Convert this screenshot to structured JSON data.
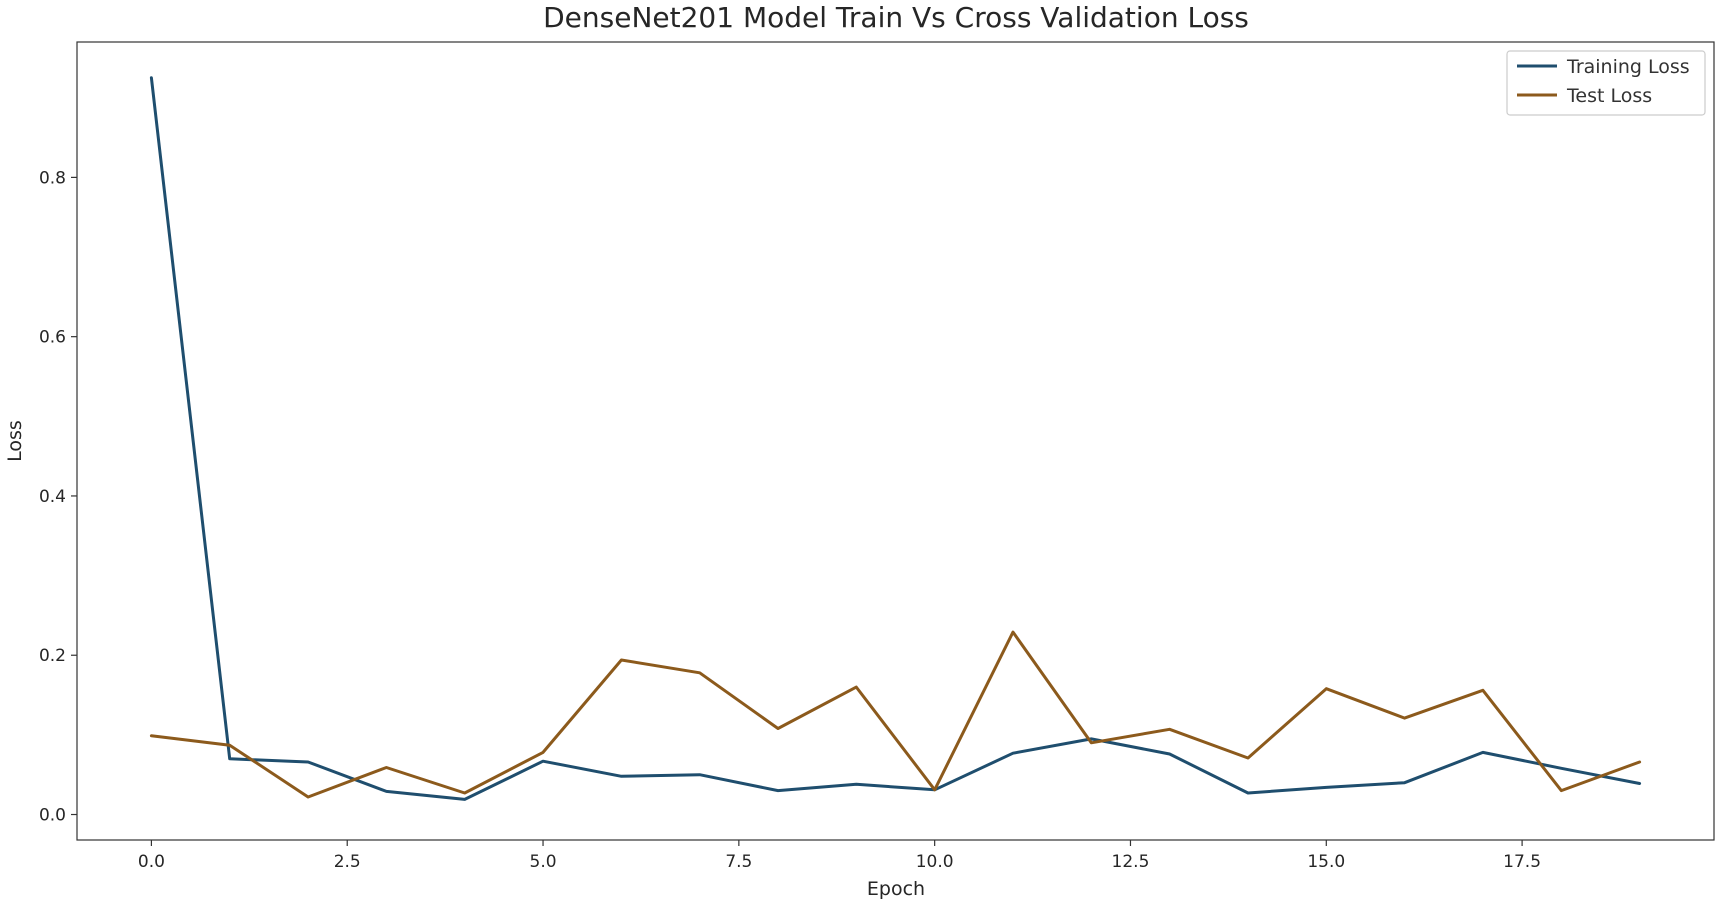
{
  "chart_data": {
    "type": "line",
    "title": "DenseNet201 Model Train Vs Cross Validation Loss",
    "xlabel": "Epoch",
    "ylabel": "Loss",
    "xlim": [
      -0.95,
      19.95
    ],
    "ylim": [
      -0.032,
      0.97
    ],
    "x_ticks": [
      "0.0",
      "2.5",
      "5.0",
      "7.5",
      "10.0",
      "12.5",
      "15.0",
      "17.5"
    ],
    "y_ticks": [
      "0.0",
      "0.2",
      "0.4",
      "0.6",
      "0.8"
    ],
    "grid": false,
    "legend_position": "top-right",
    "x": [
      0,
      1,
      2,
      3,
      4,
      5,
      6,
      7,
      8,
      9,
      10,
      11,
      12,
      13,
      14,
      15,
      16,
      17,
      18,
      19
    ],
    "series": [
      {
        "name": "Training Loss",
        "color": "#1f4e6e",
        "values": [
          0.925,
          0.07,
          0.066,
          0.029,
          0.019,
          0.067,
          0.048,
          0.05,
          0.03,
          0.038,
          0.031,
          0.077,
          0.095,
          0.076,
          0.027,
          0.034,
          0.04,
          0.078,
          0.058,
          0.039
        ]
      },
      {
        "name": "Test Loss",
        "color": "#8c5a1c",
        "values": [
          0.099,
          0.087,
          0.022,
          0.059,
          0.027,
          0.078,
          0.194,
          0.178,
          0.108,
          0.16,
          0.031,
          0.229,
          0.09,
          0.107,
          0.071,
          0.158,
          0.121,
          0.156,
          0.03,
          0.066
        ]
      }
    ]
  }
}
